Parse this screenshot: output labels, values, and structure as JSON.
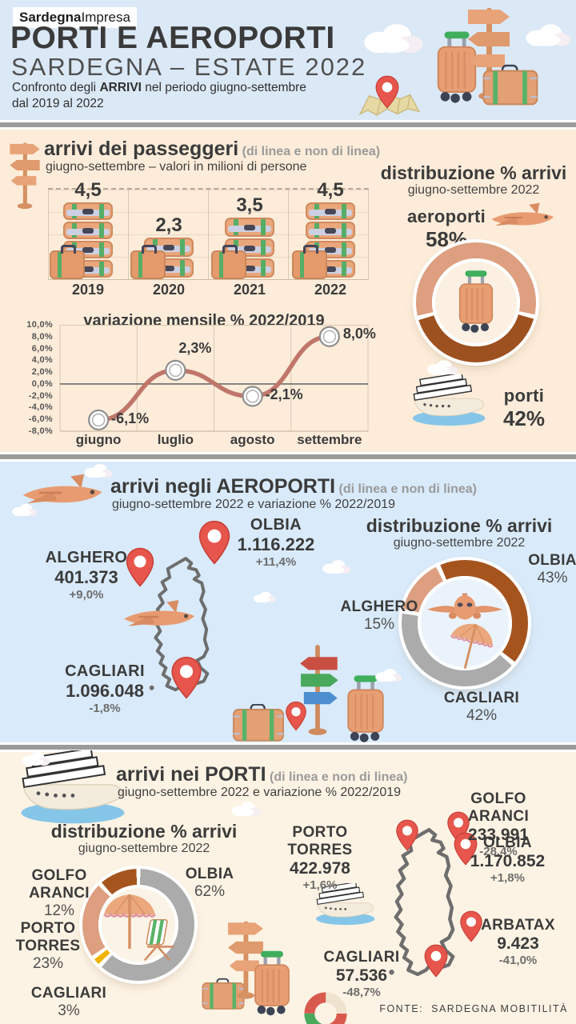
{
  "header": {
    "logo_bold": "Sardegna",
    "logo_light": "Impresa",
    "title": "PORTI E AEROPORTI",
    "subtitle": "SARDEGNA – ESTATE 2022",
    "desc_1": "Confronto degli ",
    "desc_bold": "ARRIVI",
    "desc_2": " nel periodo giugno-settembre",
    "desc_3": "dal 2019 al 2022"
  },
  "colors": {
    "header_bg": "#dbe8f6",
    "section_peach": "#fcecd9",
    "section_blue": "#d9eafa",
    "section_cream": "#fdf3e4",
    "salmon": "#dd9f80",
    "rust": "#9e5120",
    "gray": "#ababab",
    "yellow": "#f0b400",
    "line": "#c0766a",
    "pin_red": "#e7564c"
  },
  "chart_data": [
    {
      "id": "arrivi_passeggeri",
      "type": "bar",
      "title": "arrivi dei passeggeri",
      "note": "(di linea e non di linea)",
      "subtitle": "giugno-settembre – valori in milioni  di persone",
      "categories": [
        "2019",
        "2020",
        "2021",
        "2022"
      ],
      "values": [
        4.5,
        2.3,
        3.5,
        4.5
      ],
      "value_labels": [
        "4,5",
        "2,3",
        "3,5",
        "4,5"
      ],
      "ylim": [
        0,
        5
      ],
      "grid": true
    },
    {
      "id": "variazione_mensile",
      "type": "line",
      "title": "variazione mensile % 2022/2019",
      "x": [
        "giugno",
        "luglio",
        "agosto",
        "settembre"
      ],
      "values": [
        -6.1,
        2.3,
        -2.1,
        8.0
      ],
      "value_labels": [
        "-6,1%",
        "2,3%",
        "-2,1%",
        "8,0%"
      ],
      "ylim": [
        -8,
        10
      ],
      "yticks": [
        "10,0%",
        "8,0%",
        "6,0%",
        "4,0%",
        "2,0%",
        "0,0%",
        "-2,0%",
        "-4,0%",
        "-6,0%",
        "-8,0%"
      ],
      "line_color": "#c0766a"
    },
    {
      "id": "distribuzione_arrivi_totale",
      "type": "pie",
      "title": "distribuzione % arrivi",
      "subtitle": "giugno-settembre 2022",
      "from_deg": 255,
      "slices": [
        {
          "label": "aeroporti",
          "pct": "58%",
          "value": 58,
          "color": "#dd9f80"
        },
        {
          "label": "porti",
          "pct": "42%",
          "value": 42,
          "color": "#9e5120"
        }
      ]
    },
    {
      "id": "distribuzione_arrivi_aeroporti",
      "type": "pie",
      "title": "distribuzione % arrivi",
      "subtitle": "giugno-settembre 2022",
      "from_deg": -25,
      "slices": [
        {
          "label": "OLBIA",
          "pct": "43%",
          "value": 43,
          "color": "#a6541e"
        },
        {
          "label": "CAGLIARI",
          "pct": "42%",
          "value": 42,
          "color": "#ababab"
        },
        {
          "label": "ALGHERO",
          "pct": "15%",
          "value": 15,
          "color": "#dd9f80"
        }
      ]
    },
    {
      "id": "distribuzione_arrivi_porti",
      "type": "pie",
      "title": "distribuzione % arrivi",
      "subtitle": "giugno-settembre 2022",
      "from_deg": 0,
      "slices": [
        {
          "label": "OLBIA",
          "pct": "62%",
          "value": 62,
          "color": "#ababab"
        },
        {
          "label": "CAGLIARI",
          "pct": "3%",
          "value": 3,
          "color": "#f0b400"
        },
        {
          "label": "PORTO TORRES",
          "pct": "23%",
          "value": 23,
          "color": "#dd9f80"
        },
        {
          "label": "GOLFO ARANCI",
          "pct": "12%",
          "value": 12,
          "color": "#a6541e"
        }
      ]
    }
  ],
  "sections": {
    "airports": {
      "title": "arrivi negli AEROPORTI",
      "note": "(di linea e non di linea)",
      "subtitle": "giugno-settembre 2022  e variazione  % 2022/2019",
      "locations": [
        {
          "name": "OLBIA",
          "value": "1.116.222",
          "change": "+11,4%"
        },
        {
          "name": "ALGHERO",
          "value": "401.373",
          "change": "+9,0%"
        },
        {
          "name": "CAGLIARI",
          "value": "1.096.048",
          "change": "-1,8%"
        }
      ]
    },
    "ports": {
      "title": "arrivi nei PORTI",
      "note": "(di linea e non di linea)",
      "subtitle": "giugno-settembre 2022  e variazione  % 2022/2019",
      "locations": [
        {
          "name": "PORTO TORRES",
          "value": "422.978",
          "change": "+1,6%"
        },
        {
          "name": "GOLFO ARANCI",
          "value": "233.991",
          "change": "-28,4%"
        },
        {
          "name": "OLBIA",
          "value": "1.170.852",
          "change": "+1,8%"
        },
        {
          "name": "ARBATAX",
          "value": "9.423",
          "change": "-41,0%"
        },
        {
          "name": "CAGLIARI",
          "value": "57.536",
          "change": "-48,7%"
        }
      ]
    }
  },
  "footer": {
    "source_label": "FONTE:",
    "source": "SARDEGNA MOBITILITÀ"
  },
  "illustrations": [
    "cloud",
    "signpost",
    "trolley-suitcase",
    "suitcase",
    "open-map",
    "location-pin",
    "airplane-side",
    "airplane-front",
    "cruise-ship",
    "beach-umbrella",
    "deck-chair",
    "lifebuoy",
    "sardinia-outline"
  ]
}
